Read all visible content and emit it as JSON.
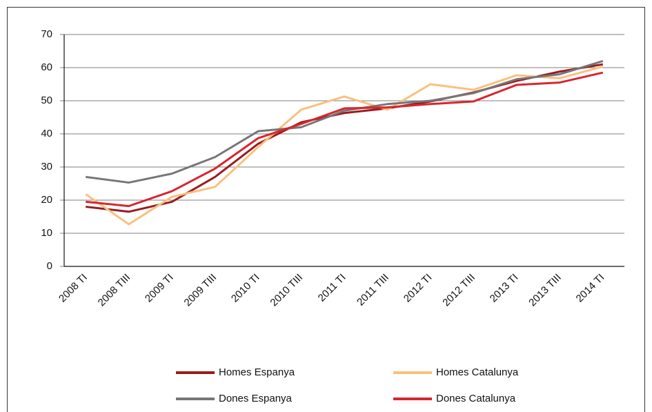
{
  "chart_data": {
    "type": "line",
    "categories": [
      "2008 TI",
      "2008 TIII",
      "2009 TI",
      "2009 TIII",
      "2010 TI",
      "2010 TIII",
      "2011 TI",
      "2011 TIII",
      "2012 TI",
      "2012 TIII",
      "2013 TI",
      "2013 TIII",
      "2014 TI"
    ],
    "series": [
      {
        "name": "Homes Espanya",
        "color": "#9b1b1f",
        "values": [
          18,
          16.5,
          19.5,
          27,
          37,
          43.5,
          46.3,
          47.7,
          49.8,
          52.5,
          56,
          58.8,
          61
        ]
      },
      {
        "name": "Homes Catalunya",
        "color": "#f9c07f",
        "values": [
          21.8,
          12.7,
          21,
          24,
          36,
          47.3,
          51.3,
          47.3,
          55,
          53.3,
          57.7,
          56.8,
          60.3
        ]
      },
      {
        "name": "Dones Espanya",
        "color": "#767676",
        "values": [
          27,
          25.3,
          28,
          33,
          40.8,
          42,
          47,
          49,
          50,
          52.3,
          56.5,
          58,
          62
        ]
      },
      {
        "name": "Dones Catalunya",
        "color": "#d7262e",
        "values": [
          19.5,
          18.2,
          22.7,
          29.5,
          38.7,
          43,
          47.7,
          48,
          49,
          49.8,
          54.8,
          55.5,
          58.5
        ]
      }
    ],
    "ylim": [
      0,
      70
    ],
    "yticks": [
      0,
      10,
      20,
      30,
      40,
      50,
      60,
      70
    ],
    "grid": true
  }
}
